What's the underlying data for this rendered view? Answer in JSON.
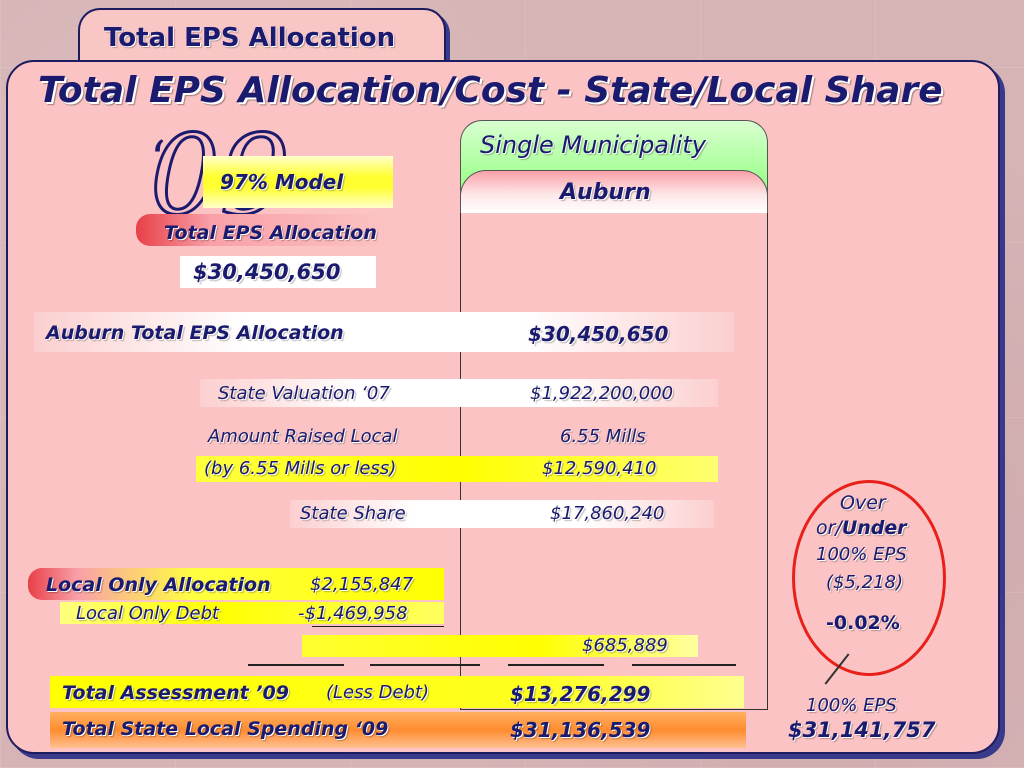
{
  "tab_title": "Total EPS Allocation",
  "main_title": "Total EPS Allocation/Cost - State/Local Share",
  "year_mark": "09",
  "model_label": "97% Model",
  "left_block": {
    "allocation_label": "Total EPS Allocation",
    "allocation_value": "$30,450,650"
  },
  "column": {
    "header": "Single Municipality",
    "municipality": "Auburn"
  },
  "rows": {
    "auburn_total_label": "Auburn  Total EPS Allocation",
    "auburn_total_value": "$30,450,650",
    "state_valuation_label": "State Valuation ‘07",
    "state_valuation_value": "$1,922,200,000",
    "amount_raised_label": "Amount Raised Local",
    "amount_raised_value": "6.55 Mills",
    "mills_label": "(by 6.55 Mills or less)",
    "mills_value": "$12,590,410",
    "state_share_label": "State Share",
    "state_share_value": "$17,860,240",
    "local_only_label": "Local Only  Allocation",
    "local_only_value": "$2,155,847",
    "local_debt_label": "Local Only Debt",
    "local_debt_value": "-$1,469,958",
    "net_value": "$685,889",
    "total_assessment_label": "Total  Assessment ’09",
    "total_assessment_sub": "(Less Debt)",
    "total_assessment_value": "$13,276,299",
    "total_spending_label": "Total State Local Spending ‘09",
    "total_spending_value": "$31,136,539"
  },
  "side_note": {
    "over": "Over",
    "or_under_prefix": "or/",
    "under": "Under",
    "pct_eps": "100% EPS",
    "diff": "($5,218)",
    "pct": "-0.02%",
    "eps_label": "100% EPS",
    "eps_value": "$31,141,757"
  },
  "colors": {
    "navy": "#1a1a6e",
    "panel": "#fbc3c3",
    "yellow": "#ffff00",
    "red": "#e8201a",
    "green": "#9bff8a"
  }
}
